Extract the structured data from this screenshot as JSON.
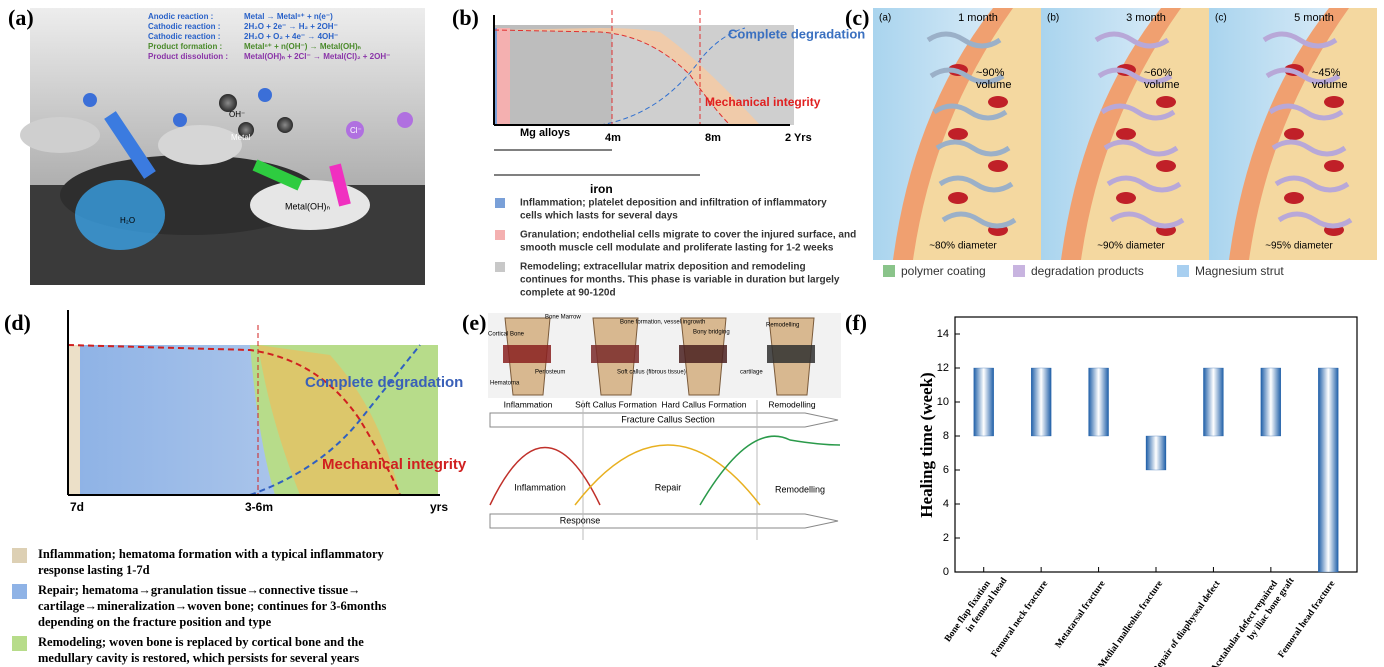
{
  "panels": {
    "a": {
      "label": "(a)",
      "reactions": [
        {
          "name": "Anodic reaction :",
          "equation": "Metal → Metalⁿ⁺ + n(e⁻)",
          "color": "#2a62c8"
        },
        {
          "name": "Cathodic reaction :",
          "equation": "2H₂O + 2e⁻ → H₂ + 2OH⁻",
          "color": "#2a62c8"
        },
        {
          "name": "Cathodic reaction :",
          "equation": "2H₂O + O₂ + 4e⁻ → 4OH⁻",
          "color": "#2a62c8"
        },
        {
          "name": "Product formation :",
          "equation": "Metalⁿ⁺ + n(OH⁻) → Metal(OH)ₙ",
          "color": "#4a8a2a"
        },
        {
          "name": "Product dissolution :",
          "equation": "Metal(OH)ₙ + 2Cl⁻ → Metal(Cl)₂ + 2OH⁻",
          "color": "#8a34a8"
        }
      ],
      "species": [
        "OH⁻",
        "Metal",
        "Cl⁻",
        "H₂O",
        "Metal(OH)ₙ"
      ]
    },
    "b": {
      "label": "(b)",
      "degradation_label": "Complete degradation",
      "integrity_label": "Mechanical integrity",
      "mg_label": "Mg alloys",
      "iron_label": "iron",
      "ticks": [
        "4m",
        "8m",
        "2 Yrs"
      ],
      "legend": [
        {
          "color": "#7aa0d8",
          "lines": [
            "Inflammation; platelet deposition and infiltration of inflammatory",
            "cells which lasts for several days"
          ]
        },
        {
          "color": "#f4b0b0",
          "lines": [
            "Granulation; endothelial cells migrate to cover the injured surface, and",
            "smooth muscle cell modulate and proliferate lasting for 1-2 weeks"
          ]
        },
        {
          "color": "#c8c8c8",
          "lines": [
            "Remodeling; extracellular matrix deposition and remodeling",
            "continues for months. This phase is variable in duration but largely",
            "complete at 90-120d"
          ]
        }
      ]
    },
    "c": {
      "label": "(c)",
      "stages": [
        {
          "tag": "(a)",
          "time": "1 month",
          "volume": [
            "~90%",
            "volume"
          ],
          "diameter": "~80% diameter"
        },
        {
          "tag": "(b)",
          "time": "3 month",
          "volume": [
            "~60%",
            "volume"
          ],
          "diameter": "~90% diameter"
        },
        {
          "tag": "(c)",
          "time": "5 month",
          "volume": [
            "~45%",
            "volume"
          ],
          "diameter": "~95% diameter"
        }
      ],
      "legend": [
        {
          "color": "#8ac48a",
          "text": "polymer coating"
        },
        {
          "color": "#c8b4e0",
          "text": "degradation products"
        },
        {
          "color": "#a8cff0",
          "text": "Magnesium strut"
        }
      ]
    },
    "d": {
      "label": "(d)",
      "degradation_label": "Complete degradation",
      "integrity_label": "Mechanical integrity",
      "ticks": [
        "7d",
        "3-6m",
        "yrs"
      ],
      "legend": [
        {
          "color": "#ddd0b4",
          "lines": [
            "Inflammation;  hematoma formation with a typical inflammatory",
            "response lasting 1-7d"
          ]
        },
        {
          "color": "#8fb3e6",
          "lines": [
            "Repair;  hematoma→granulation tissue→connective tissue→",
            "cartilage→mineralization→woven bone; continues for 3-6months",
            "depending on the fracture position and type"
          ]
        },
        {
          "color": "#b7dc8a",
          "lines": [
            "Remodeling; woven bone is replaced by cortical bone and the",
            "medullary cavity is restored, which persists for several years"
          ]
        }
      ]
    },
    "e": {
      "label": "(e)",
      "stages": [
        "Inflammation",
        "Soft Callus Formation",
        "Hard Callus Formation",
        "Remodelling"
      ],
      "image_labels": [
        "Cortical Bone",
        "Bone Marrow",
        "Hematoma",
        "Periosteum",
        "Bone formation, vessel ingrowth",
        "Soft callus (fibrous tissue)",
        "Bony bridging",
        "cartilage",
        "Remodelling"
      ],
      "section_label": "Fracture Callus Section",
      "curve_labels": [
        "Inflammation",
        "Repair",
        "Remodelling"
      ],
      "response_label": "Response"
    },
    "f": {
      "label": "(f)"
    }
  },
  "chart_data": {
    "type": "range-bar",
    "ylabel": "Healing time (week)",
    "categories": [
      [
        "Bone flap fixation",
        "in femoral head"
      ],
      [
        "Femoral neck fracture"
      ],
      [
        "Metatarsal fracture"
      ],
      [
        "Medial malleolus fracture"
      ],
      [
        "Repair of diaphyseal defect"
      ],
      [
        "Acetabular defect repaired",
        "by iliac bone graft"
      ],
      [
        "Femoral head fracture"
      ]
    ],
    "values": [
      [
        8,
        12
      ],
      [
        8,
        12
      ],
      [
        8,
        12
      ],
      [
        6,
        8
      ],
      [
        8,
        12
      ],
      [
        8,
        12
      ],
      [
        0,
        12
      ]
    ],
    "ylim": [
      0,
      15
    ],
    "yticks": [
      0,
      2,
      4,
      6,
      8,
      10,
      12,
      14
    ],
    "color": "#1f5fa8"
  }
}
